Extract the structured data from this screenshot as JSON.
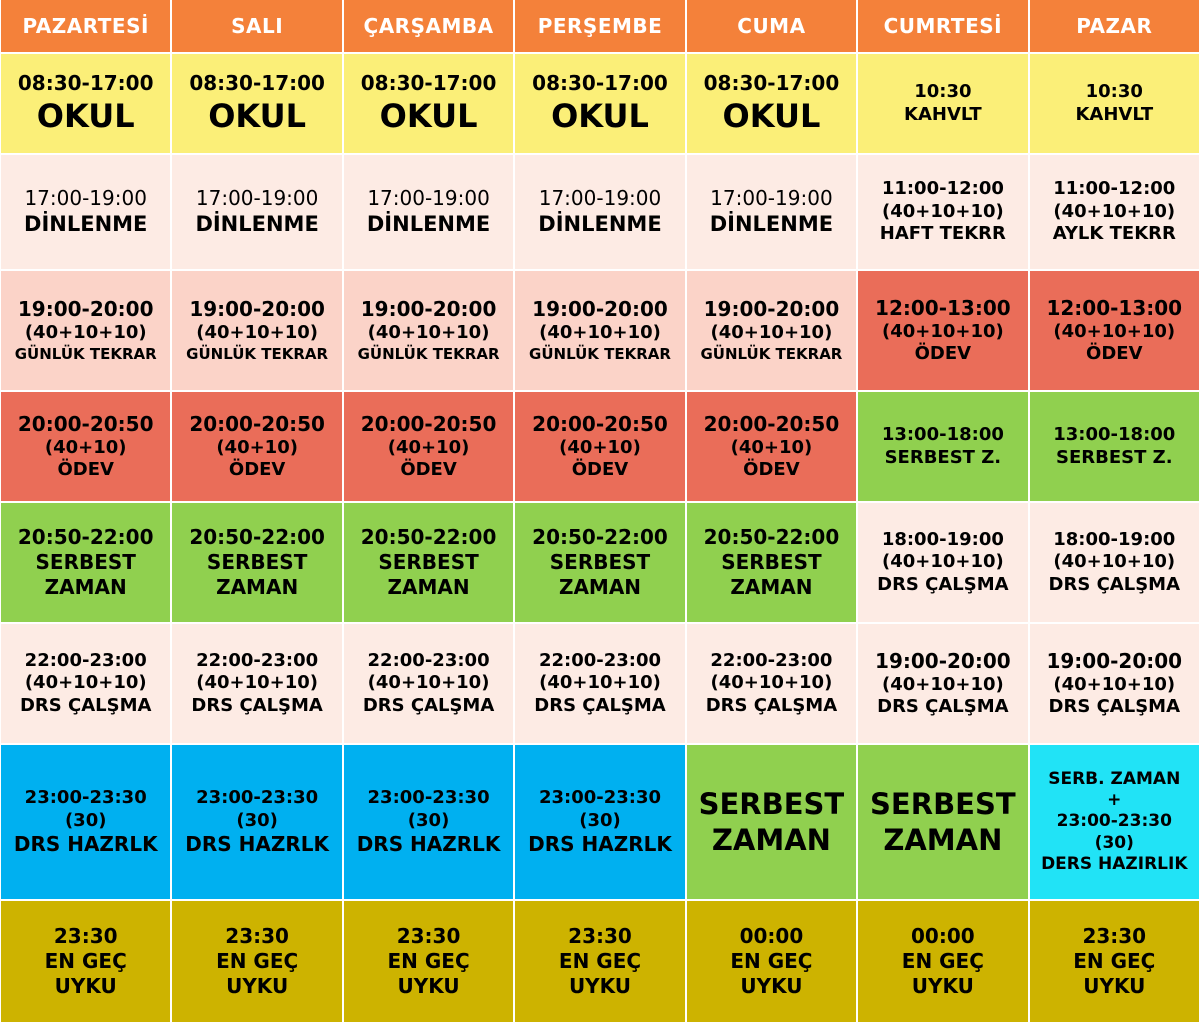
{
  "days": [
    "PAZARTESİ",
    "SALI",
    "ÇARŞAMBA",
    "PERŞEMBE",
    "CUMA",
    "CUMRTESİ",
    "PAZAR"
  ],
  "rows": [
    [
      {
        "color": "yellow",
        "lines": [
          {
            "t": "08:30-17:00",
            "s": "t-time"
          },
          {
            "t": "OKUL",
            "s": "t-big"
          }
        ]
      },
      {
        "color": "yellow",
        "lines": [
          {
            "t": "08:30-17:00",
            "s": "t-time"
          },
          {
            "t": "OKUL",
            "s": "t-big"
          }
        ]
      },
      {
        "color": "yellow",
        "lines": [
          {
            "t": "08:30-17:00",
            "s": "t-time"
          },
          {
            "t": "OKUL",
            "s": "t-big"
          }
        ]
      },
      {
        "color": "yellow",
        "lines": [
          {
            "t": "08:30-17:00",
            "s": "t-time"
          },
          {
            "t": "OKUL",
            "s": "t-big"
          }
        ]
      },
      {
        "color": "yellow",
        "lines": [
          {
            "t": "08:30-17:00",
            "s": "t-time"
          },
          {
            "t": "OKUL",
            "s": "t-big"
          }
        ]
      },
      {
        "color": "yellow",
        "lines": [
          {
            "t": "10:30",
            "s": "t-sm"
          },
          {
            "t": "KAHVLT",
            "s": "t-sm"
          }
        ]
      },
      {
        "color": "yellow",
        "lines": [
          {
            "t": "10:30",
            "s": "t-sm"
          },
          {
            "t": "KAHVLT",
            "s": "t-sm"
          }
        ]
      }
    ],
    [
      {
        "color": "pink-light",
        "lines": [
          {
            "t": "17:00-19:00",
            "s": "t-time-reg"
          },
          {
            "t": "DİNLENME",
            "s": "t-mid"
          }
        ]
      },
      {
        "color": "pink-light",
        "lines": [
          {
            "t": "17:00-19:00",
            "s": "t-time-reg"
          },
          {
            "t": "DİNLENME",
            "s": "t-mid"
          }
        ]
      },
      {
        "color": "pink-light",
        "lines": [
          {
            "t": "17:00-19:00",
            "s": "t-time-reg"
          },
          {
            "t": "DİNLENME",
            "s": "t-mid"
          }
        ]
      },
      {
        "color": "pink-light",
        "lines": [
          {
            "t": "17:00-19:00",
            "s": "t-time-reg"
          },
          {
            "t": "DİNLENME",
            "s": "t-mid"
          }
        ]
      },
      {
        "color": "pink-light",
        "lines": [
          {
            "t": "17:00-19:00",
            "s": "t-time-reg"
          },
          {
            "t": "DİNLENME",
            "s": "t-mid"
          }
        ]
      },
      {
        "color": "pink-light",
        "lines": [
          {
            "t": "11:00-12:00",
            "s": "t-sm"
          },
          {
            "t": "(40+10+10)",
            "s": "t-sm"
          },
          {
            "t": "HAFT TEKRR",
            "s": "t-sm"
          }
        ]
      },
      {
        "color": "pink-light",
        "lines": [
          {
            "t": "11:00-12:00",
            "s": "t-sm"
          },
          {
            "t": "(40+10+10)",
            "s": "t-sm"
          },
          {
            "t": "AYLK TEKRR",
            "s": "t-sm"
          }
        ]
      }
    ],
    [
      {
        "color": "pink",
        "lines": [
          {
            "t": "19:00-20:00",
            "s": "t-time"
          },
          {
            "t": "(40+10+10)",
            "s": "t-sm"
          },
          {
            "t": "GÜNLÜK TEKRAR",
            "s": "t-xs"
          }
        ]
      },
      {
        "color": "pink",
        "lines": [
          {
            "t": "19:00-20:00",
            "s": "t-time"
          },
          {
            "t": "(40+10+10)",
            "s": "t-sm"
          },
          {
            "t": "GÜNLÜK TEKRAR",
            "s": "t-xs"
          }
        ]
      },
      {
        "color": "pink",
        "lines": [
          {
            "t": "19:00-20:00",
            "s": "t-time"
          },
          {
            "t": "(40+10+10)",
            "s": "t-sm"
          },
          {
            "t": "GÜNLÜK TEKRAR",
            "s": "t-xs"
          }
        ]
      },
      {
        "color": "pink",
        "lines": [
          {
            "t": "19:00-20:00",
            "s": "t-time"
          },
          {
            "t": "(40+10+10)",
            "s": "t-sm"
          },
          {
            "t": "GÜNLÜK TEKRAR",
            "s": "t-xs"
          }
        ]
      },
      {
        "color": "pink",
        "lines": [
          {
            "t": "19:00-20:00",
            "s": "t-time"
          },
          {
            "t": "(40+10+10)",
            "s": "t-sm"
          },
          {
            "t": "GÜNLÜK TEKRAR",
            "s": "t-xs"
          }
        ]
      },
      {
        "color": "red",
        "lines": [
          {
            "t": "12:00-13:00",
            "s": "t-time"
          },
          {
            "t": "(40+10+10)",
            "s": "t-sm"
          },
          {
            "t": "ÖDEV",
            "s": "t-sm"
          }
        ]
      },
      {
        "color": "red",
        "lines": [
          {
            "t": "12:00-13:00",
            "s": "t-time"
          },
          {
            "t": "(40+10+10)",
            "s": "t-sm"
          },
          {
            "t": "ÖDEV",
            "s": "t-sm"
          }
        ]
      }
    ],
    [
      {
        "color": "red",
        "lines": [
          {
            "t": "20:00-20:50",
            "s": "t-time"
          },
          {
            "t": "(40+10)",
            "s": "t-sm"
          },
          {
            "t": "ÖDEV",
            "s": "t-sm"
          }
        ]
      },
      {
        "color": "red",
        "lines": [
          {
            "t": "20:00-20:50",
            "s": "t-time"
          },
          {
            "t": "(40+10)",
            "s": "t-sm"
          },
          {
            "t": "ÖDEV",
            "s": "t-sm"
          }
        ]
      },
      {
        "color": "red",
        "lines": [
          {
            "t": "20:00-20:50",
            "s": "t-time"
          },
          {
            "t": "(40+10)",
            "s": "t-sm"
          },
          {
            "t": "ÖDEV",
            "s": "t-sm"
          }
        ]
      },
      {
        "color": "red",
        "lines": [
          {
            "t": "20:00-20:50",
            "s": "t-time"
          },
          {
            "t": "(40+10)",
            "s": "t-sm"
          },
          {
            "t": "ÖDEV",
            "s": "t-sm"
          }
        ]
      },
      {
        "color": "red",
        "lines": [
          {
            "t": "20:00-20:50",
            "s": "t-time"
          },
          {
            "t": "(40+10)",
            "s": "t-sm"
          },
          {
            "t": "ÖDEV",
            "s": "t-sm"
          }
        ]
      },
      {
        "color": "green",
        "lines": [
          {
            "t": "13:00-18:00",
            "s": "t-sm"
          },
          {
            "t": "SERBEST Z.",
            "s": "t-sm"
          }
        ]
      },
      {
        "color": "green",
        "lines": [
          {
            "t": "13:00-18:00",
            "s": "t-sm"
          },
          {
            "t": "SERBEST Z.",
            "s": "t-sm"
          }
        ]
      }
    ],
    [
      {
        "color": "green",
        "lines": [
          {
            "t": "20:50-22:00",
            "s": "t-time"
          },
          {
            "t": "SERBEST",
            "s": "t-time"
          },
          {
            "t": "ZAMAN",
            "s": "t-time"
          }
        ]
      },
      {
        "color": "green",
        "lines": [
          {
            "t": "20:50-22:00",
            "s": "t-time"
          },
          {
            "t": "SERBEST",
            "s": "t-time"
          },
          {
            "t": "ZAMAN",
            "s": "t-time"
          }
        ]
      },
      {
        "color": "green",
        "lines": [
          {
            "t": "20:50-22:00",
            "s": "t-time"
          },
          {
            "t": "SERBEST",
            "s": "t-time"
          },
          {
            "t": "ZAMAN",
            "s": "t-time"
          }
        ]
      },
      {
        "color": "green",
        "lines": [
          {
            "t": "20:50-22:00",
            "s": "t-time"
          },
          {
            "t": "SERBEST",
            "s": "t-time"
          },
          {
            "t": "ZAMAN",
            "s": "t-time"
          }
        ]
      },
      {
        "color": "green",
        "lines": [
          {
            "t": "20:50-22:00",
            "s": "t-time"
          },
          {
            "t": "SERBEST",
            "s": "t-time"
          },
          {
            "t": "ZAMAN",
            "s": "t-time"
          }
        ]
      },
      {
        "color": "pink-light",
        "lines": [
          {
            "t": "18:00-19:00",
            "s": "t-sm"
          },
          {
            "t": "(40+10+10)",
            "s": "t-sm"
          },
          {
            "t": "DRS ÇALŞMA",
            "s": "t-sm"
          }
        ]
      },
      {
        "color": "pink-light",
        "lines": [
          {
            "t": "18:00-19:00",
            "s": "t-sm"
          },
          {
            "t": "(40+10+10)",
            "s": "t-sm"
          },
          {
            "t": "DRS ÇALŞMA",
            "s": "t-sm"
          }
        ]
      }
    ],
    [
      {
        "color": "pink-light",
        "lines": [
          {
            "t": "22:00-23:00",
            "s": "t-sm"
          },
          {
            "t": "(40+10+10)",
            "s": "t-sm"
          },
          {
            "t": "DRS ÇALŞMA",
            "s": "t-sm"
          }
        ]
      },
      {
        "color": "pink-light",
        "lines": [
          {
            "t": "22:00-23:00",
            "s": "t-sm"
          },
          {
            "t": "(40+10+10)",
            "s": "t-sm"
          },
          {
            "t": "DRS ÇALŞMA",
            "s": "t-sm"
          }
        ]
      },
      {
        "color": "pink-light",
        "lines": [
          {
            "t": "22:00-23:00",
            "s": "t-sm"
          },
          {
            "t": "(40+10+10)",
            "s": "t-sm"
          },
          {
            "t": "DRS ÇALŞMA",
            "s": "t-sm"
          }
        ]
      },
      {
        "color": "pink-light",
        "lines": [
          {
            "t": "22:00-23:00",
            "s": "t-sm"
          },
          {
            "t": "(40+10+10)",
            "s": "t-sm"
          },
          {
            "t": "DRS ÇALŞMA",
            "s": "t-sm"
          }
        ]
      },
      {
        "color": "pink-light",
        "lines": [
          {
            "t": "22:00-23:00",
            "s": "t-sm"
          },
          {
            "t": "(40+10+10)",
            "s": "t-sm"
          },
          {
            "t": "DRS ÇALŞMA",
            "s": "t-sm"
          }
        ]
      },
      {
        "color": "pink-light",
        "lines": [
          {
            "t": "19:00-20:00",
            "s": "t-time"
          },
          {
            "t": "(40+10+10)",
            "s": "t-sm"
          },
          {
            "t": "DRS ÇALŞMA",
            "s": "t-sm"
          }
        ]
      },
      {
        "color": "pink-light",
        "lines": [
          {
            "t": "19:00-20:00",
            "s": "t-time"
          },
          {
            "t": "(40+10+10)",
            "s": "t-sm"
          },
          {
            "t": "DRS ÇALŞMA",
            "s": "t-sm"
          }
        ]
      }
    ],
    [
      {
        "color": "blue",
        "lines": [
          {
            "t": "23:00-23:30",
            "s": "t-sm"
          },
          {
            "t": "(30)",
            "s": "t-sm"
          },
          {
            "t": "DRS HAZRLK",
            "s": "t-time"
          }
        ]
      },
      {
        "color": "blue",
        "lines": [
          {
            "t": "23:00-23:30",
            "s": "t-sm"
          },
          {
            "t": "(30)",
            "s": "t-sm"
          },
          {
            "t": "DRS HAZRLK",
            "s": "t-time"
          }
        ]
      },
      {
        "color": "blue",
        "lines": [
          {
            "t": "23:00-23:30",
            "s": "t-sm"
          },
          {
            "t": "(30)",
            "s": "t-sm"
          },
          {
            "t": "DRS HAZRLK",
            "s": "t-time"
          }
        ]
      },
      {
        "color": "blue",
        "lines": [
          {
            "t": "23:00-23:30",
            "s": "t-sm"
          },
          {
            "t": "(30)",
            "s": "t-sm"
          },
          {
            "t": "DRS HAZRLK",
            "s": "t-time"
          }
        ]
      },
      {
        "color": "green",
        "lines": [
          {
            "t": "SERBEST",
            "s": "t-big2"
          },
          {
            "t": "ZAMAN",
            "s": "t-big2"
          }
        ]
      },
      {
        "color": "green",
        "lines": [
          {
            "t": "SERBEST",
            "s": "t-big2"
          },
          {
            "t": "ZAMAN",
            "s": "t-big2"
          }
        ]
      },
      {
        "color": "cyan",
        "lines": [
          {
            "t": "SERB. ZAMAN",
            "s": "t-xs2"
          },
          {
            "t": "+",
            "s": "t-xs2"
          },
          {
            "t": "23:00-23:30",
            "s": "t-xs2"
          },
          {
            "t": "(30)",
            "s": "t-xs2"
          },
          {
            "t": "DERS HAZIRLIK",
            "s": "t-xs2"
          }
        ]
      }
    ],
    [
      {
        "color": "olive",
        "lines": [
          {
            "t": "23:30",
            "s": "t-time"
          },
          {
            "t": "EN GEÇ",
            "s": "t-time"
          },
          {
            "t": "UYKU",
            "s": "t-time"
          }
        ]
      },
      {
        "color": "olive",
        "lines": [
          {
            "t": "23:30",
            "s": "t-time"
          },
          {
            "t": "EN GEÇ",
            "s": "t-time"
          },
          {
            "t": "UYKU",
            "s": "t-time"
          }
        ]
      },
      {
        "color": "olive",
        "lines": [
          {
            "t": "23:30",
            "s": "t-time"
          },
          {
            "t": "EN GEÇ",
            "s": "t-time"
          },
          {
            "t": "UYKU",
            "s": "t-time"
          }
        ]
      },
      {
        "color": "olive",
        "lines": [
          {
            "t": "23:30",
            "s": "t-time"
          },
          {
            "t": "EN GEÇ",
            "s": "t-time"
          },
          {
            "t": "UYKU",
            "s": "t-time"
          }
        ]
      },
      {
        "color": "olive",
        "lines": [
          {
            "t": "00:00",
            "s": "t-time"
          },
          {
            "t": "EN GEÇ",
            "s": "t-time"
          },
          {
            "t": "UYKU",
            "s": "t-time"
          }
        ]
      },
      {
        "color": "olive",
        "lines": [
          {
            "t": "00:00",
            "s": "t-time"
          },
          {
            "t": "EN GEÇ",
            "s": "t-time"
          },
          {
            "t": "UYKU",
            "s": "t-time"
          }
        ]
      },
      {
        "color": "olive",
        "lines": [
          {
            "t": "23:30",
            "s": "t-time"
          },
          {
            "t": "EN GEÇ",
            "s": "t-time"
          },
          {
            "t": "UYKU",
            "s": "t-time"
          }
        ]
      }
    ]
  ]
}
